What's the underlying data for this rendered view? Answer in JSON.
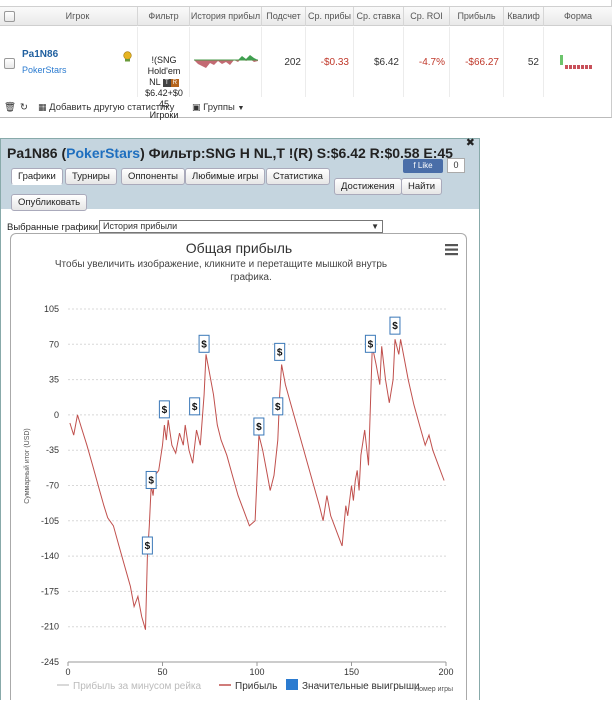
{
  "stats_table": {
    "headers": [
      "Игрок",
      "Фильтр",
      "История прибыл",
      "Подсчет",
      "Ср. прибы",
      "Ср. ставка",
      "Ср. ROI",
      "Прибыль",
      "Квалиф",
      "Форма"
    ],
    "row": {
      "player_name": "Pa1N86",
      "site": "PokerStars",
      "filter_lines": [
        "!(SNG",
        "Hold'em",
        "NL",
        "$6.42+$0",
        "45",
        "Игроки"
      ],
      "count": "202",
      "avg_profit": "-$0.33",
      "avg_stake": "$6.42",
      "avg_roi": "-4.7%",
      "profit": "-$66.27",
      "qualifiers": "52"
    },
    "toolbar": {
      "add_stat": "Добавить другую статистику",
      "groups": "Группы"
    }
  },
  "popup": {
    "player": "Pa1N86",
    "site": "PokerStars",
    "title_rest": "Фильтр:SNG H NL,T !(R) S:$6.42 R:$0.58 E:45",
    "fb_like": "Like",
    "fb_count": "0",
    "close": "✖",
    "tabs": [
      "Графики",
      "Турниры",
      "Оппоненты",
      "Любимые игры",
      "Статистика",
      "Достижения",
      "Найти",
      "Опубликовать"
    ],
    "active_tab": "Графики",
    "selector_label": "Выбранные графики:",
    "selector_value": "История прибыли"
  },
  "colors": {
    "profit_line": "#c0504d",
    "rake_line": "#cccccc",
    "marker_blue": "#2b7bd0",
    "site_blue": "#1f6fbf"
  },
  "chart_data": {
    "type": "line",
    "title": "Общая прибыль",
    "subtitle_lines": [
      "Чтобы увеличить изображение, кликните и перетащите мышкой внутрь",
      "графика."
    ],
    "ylabel": "Суммарный итог (USD)",
    "xlabel": "Номер игры",
    "xlim": [
      0,
      200
    ],
    "ylim": [
      -245,
      105
    ],
    "yticks": [
      105,
      70,
      35,
      0,
      -35,
      -70,
      -105,
      -140,
      -175,
      -210,
      -245
    ],
    "xticks": [
      0,
      50,
      100,
      150,
      200
    ],
    "legend": [
      {
        "name": "Прибыль за минусом рейка",
        "color": "#cccccc",
        "kind": "line"
      },
      {
        "name": "Прибыль",
        "color": "#c0504d",
        "kind": "line"
      },
      {
        "name": "Значительные выигрыши",
        "color": "#2b7bd0",
        "kind": "box"
      }
    ],
    "series": [
      {
        "name": "Прибыль",
        "points": [
          [
            1,
            -8
          ],
          [
            3,
            -20
          ],
          [
            5,
            0
          ],
          [
            7,
            -12
          ],
          [
            10,
            -30
          ],
          [
            13,
            -50
          ],
          [
            16,
            -70
          ],
          [
            19,
            -90
          ],
          [
            21,
            -102
          ],
          [
            24,
            -110
          ],
          [
            27,
            -130
          ],
          [
            30,
            -150
          ],
          [
            33,
            -170
          ],
          [
            35,
            -190
          ],
          [
            37,
            -180
          ],
          [
            39,
            -200
          ],
          [
            41,
            -213
          ],
          [
            42,
            -140
          ],
          [
            43,
            -110
          ],
          [
            44,
            -70
          ],
          [
            45,
            -80
          ],
          [
            46,
            -60
          ],
          [
            48,
            -55
          ],
          [
            50,
            -30
          ],
          [
            51,
            -10
          ],
          [
            52,
            -25
          ],
          [
            53,
            -5
          ],
          [
            55,
            -30
          ],
          [
            57,
            -38
          ],
          [
            59,
            -18
          ],
          [
            61,
            -30
          ],
          [
            62,
            -10
          ],
          [
            64,
            -35
          ],
          [
            66,
            -48
          ],
          [
            68,
            -15
          ],
          [
            70,
            -30
          ],
          [
            72,
            20
          ],
          [
            73,
            60
          ],
          [
            75,
            40
          ],
          [
            77,
            20
          ],
          [
            79,
            -10
          ],
          [
            81,
            -25
          ],
          [
            84,
            -40
          ],
          [
            87,
            -60
          ],
          [
            90,
            -80
          ],
          [
            93,
            -95
          ],
          [
            96,
            -110
          ],
          [
            99,
            -105
          ],
          [
            101,
            -20
          ],
          [
            103,
            -35
          ],
          [
            105,
            -55
          ],
          [
            107,
            -75
          ],
          [
            109,
            -60
          ],
          [
            111,
            -25
          ],
          [
            112,
            20
          ],
          [
            113,
            50
          ],
          [
            115,
            30
          ],
          [
            118,
            10
          ],
          [
            121,
            -10
          ],
          [
            124,
            -30
          ],
          [
            127,
            -50
          ],
          [
            130,
            -70
          ],
          [
            133,
            -90
          ],
          [
            135,
            -105
          ],
          [
            137,
            -80
          ],
          [
            139,
            -100
          ],
          [
            141,
            -110
          ],
          [
            143,
            -120
          ],
          [
            145,
            -130
          ],
          [
            147,
            -90
          ],
          [
            148,
            -100
          ],
          [
            150,
            -70
          ],
          [
            151,
            -85
          ],
          [
            152,
            -65
          ],
          [
            153,
            -55
          ],
          [
            154,
            -75
          ],
          [
            155,
            -40
          ],
          [
            157,
            -15
          ],
          [
            159,
            -50
          ],
          [
            161,
            68
          ],
          [
            163,
            50
          ],
          [
            165,
            30
          ],
          [
            166,
            68
          ],
          [
            168,
            35
          ],
          [
            170,
            12
          ],
          [
            172,
            35
          ],
          [
            173,
            75
          ],
          [
            175,
            60
          ],
          [
            176,
            75
          ],
          [
            178,
            55
          ],
          [
            180,
            35
          ],
          [
            183,
            10
          ],
          [
            186,
            -10
          ],
          [
            189,
            -30
          ],
          [
            191,
            -20
          ],
          [
            193,
            -35
          ],
          [
            196,
            -50
          ],
          [
            199,
            -65
          ]
        ]
      }
    ],
    "big_wins": [
      {
        "x": 42,
        "y": -130
      },
      {
        "x": 44,
        "y": -65
      },
      {
        "x": 51,
        "y": 5
      },
      {
        "x": 67,
        "y": 8
      },
      {
        "x": 72,
        "y": 70
      },
      {
        "x": 101,
        "y": -12
      },
      {
        "x": 111,
        "y": 8
      },
      {
        "x": 112,
        "y": 62
      },
      {
        "x": 160,
        "y": 70
      },
      {
        "x": 173,
        "y": 88
      }
    ],
    "marker_symbol": "$"
  }
}
